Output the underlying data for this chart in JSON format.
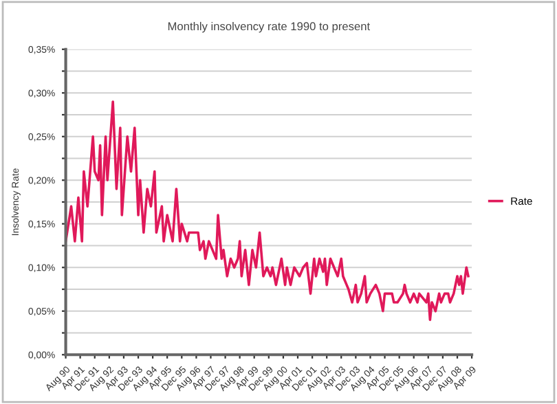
{
  "chart_data": {
    "type": "line",
    "title": "Monthly insolvency rate 1990 to present",
    "ylabel": "Insolvency Rate",
    "x": [
      "1990-08",
      "1990-11",
      "1991-01",
      "1991-03",
      "1991-05",
      "1991-06",
      "1991-08",
      "1991-11",
      "1991-12",
      "1992-02",
      "1992-03",
      "1992-04",
      "1992-06",
      "1992-07",
      "1992-10",
      "1992-12",
      "1993-02",
      "1993-03",
      "1993-06",
      "1993-08",
      "1993-10",
      "1993-12",
      "1994-01",
      "1994-03",
      "1994-05",
      "1994-07",
      "1994-09",
      "1994-10",
      "1995-01",
      "1995-02",
      "1995-04",
      "1995-07",
      "1995-09",
      "1995-11",
      "1995-12",
      "1996-03",
      "1996-04",
      "1996-09",
      "1996-10",
      "1996-12",
      "1997-01",
      "1997-03",
      "1997-05",
      "1997-07",
      "1997-08",
      "1997-10",
      "1997-11",
      "1998-01",
      "1998-03",
      "1998-05",
      "1998-07",
      "1998-08",
      "1998-09",
      "1998-11",
      "1999-01",
      "1999-03",
      "1999-05",
      "1999-07",
      "1999-09",
      "1999-11",
      "2000-01",
      "2000-02",
      "2000-04",
      "2000-07",
      "2000-09",
      "2000-10",
      "2000-12",
      "2001-02",
      "2001-05",
      "2001-07",
      "2001-09",
      "2001-11",
      "2002-01",
      "2002-02",
      "2002-04",
      "2002-06",
      "2002-07",
      "2002-08",
      "2002-10",
      "2002-12",
      "2003-02",
      "2003-04",
      "2003-05",
      "2003-07",
      "2003-08",
      "2003-10",
      "2003-12",
      "2004-01",
      "2004-03",
      "2004-05",
      "2004-06",
      "2004-08",
      "2004-11",
      "2005-01",
      "2005-03",
      "2005-04",
      "2005-08",
      "2005-09",
      "2005-11",
      "2006-02",
      "2006-03",
      "2006-04",
      "2006-06",
      "2006-08",
      "2006-10",
      "2006-11",
      "2007-03",
      "2007-04",
      "2007-05",
      "2007-06",
      "2007-08",
      "2007-10",
      "2007-11",
      "2008-01",
      "2008-03",
      "2008-04",
      "2008-06",
      "2008-08",
      "2008-09",
      "2008-10",
      "2008-11",
      "2009-01",
      "2009-02"
    ],
    "series": [
      {
        "name": "Rate",
        "color": "#e0195a",
        "values": [
          0.13,
          0.17,
          0.13,
          0.18,
          0.13,
          0.21,
          0.17,
          0.25,
          0.21,
          0.2,
          0.24,
          0.16,
          0.25,
          0.2,
          0.29,
          0.19,
          0.26,
          0.16,
          0.25,
          0.21,
          0.26,
          0.16,
          0.2,
          0.14,
          0.19,
          0.17,
          0.21,
          0.14,
          0.17,
          0.13,
          0.16,
          0.13,
          0.19,
          0.13,
          0.15,
          0.13,
          0.14,
          0.14,
          0.12,
          0.13,
          0.11,
          0.13,
          0.12,
          0.11,
          0.16,
          0.11,
          0.12,
          0.09,
          0.11,
          0.1,
          0.11,
          0.13,
          0.09,
          0.12,
          0.08,
          0.12,
          0.1,
          0.14,
          0.09,
          0.1,
          0.09,
          0.1,
          0.08,
          0.11,
          0.08,
          0.1,
          0.08,
          0.1,
          0.09,
          0.1,
          0.105,
          0.07,
          0.11,
          0.09,
          0.11,
          0.095,
          0.11,
          0.08,
          0.11,
          0.1,
          0.09,
          0.11,
          0.09,
          0.08,
          0.075,
          0.06,
          0.08,
          0.06,
          0.07,
          0.09,
          0.06,
          0.07,
          0.08,
          0.07,
          0.05,
          0.07,
          0.07,
          0.06,
          0.06,
          0.07,
          0.08,
          0.07,
          0.06,
          0.07,
          0.06,
          0.07,
          0.06,
          0.07,
          0.04,
          0.06,
          0.05,
          0.07,
          0.06,
          0.07,
          0.07,
          0.06,
          0.07,
          0.09,
          0.08,
          0.09,
          0.07,
          0.1,
          0.09
        ]
      }
    ],
    "xlim": [
      "1990-08",
      "2009-04"
    ],
    "xticks": [
      {
        "value": "1990-08",
        "label": "Aug 90"
      },
      {
        "value": "1991-04",
        "label": "Apr 91"
      },
      {
        "value": "1991-12",
        "label": "Dec 91"
      },
      {
        "value": "1992-08",
        "label": "Aug 92"
      },
      {
        "value": "1993-04",
        "label": "Apr 93"
      },
      {
        "value": "1993-12",
        "label": "Dec 93"
      },
      {
        "value": "1994-08",
        "label": "Aug 94"
      },
      {
        "value": "1995-04",
        "label": "Apr 95"
      },
      {
        "value": "1995-12",
        "label": "Dec 95"
      },
      {
        "value": "1996-08",
        "label": "Aug 96"
      },
      {
        "value": "1997-04",
        "label": "Apr 97"
      },
      {
        "value": "1997-12",
        "label": "Dec 97"
      },
      {
        "value": "1998-08",
        "label": "Aug 98"
      },
      {
        "value": "1999-04",
        "label": "Apr 99"
      },
      {
        "value": "1999-12",
        "label": "Dec 99"
      },
      {
        "value": "2000-08",
        "label": "Aug 00"
      },
      {
        "value": "2001-04",
        "label": "Apr 01"
      },
      {
        "value": "2001-12",
        "label": "Dec 01"
      },
      {
        "value": "2002-08",
        "label": "Aug 02"
      },
      {
        "value": "2003-04",
        "label": "Apr 03"
      },
      {
        "value": "2003-12",
        "label": "Dec 03"
      },
      {
        "value": "2004-08",
        "label": "Aug 04"
      },
      {
        "value": "2005-04",
        "label": "Apr 05"
      },
      {
        "value": "2005-12",
        "label": "Dec 05"
      },
      {
        "value": "2006-08",
        "label": "Aug 06"
      },
      {
        "value": "2007-04",
        "label": "Apr 07"
      },
      {
        "value": "2007-12",
        "label": "Dec 07"
      },
      {
        "value": "2008-08",
        "label": "Aug 08"
      },
      {
        "value": "2009-04",
        "label": "Apr 09"
      }
    ],
    "ylim": [
      0,
      0.35
    ],
    "yticks": [
      {
        "value": 0,
        "label": "0,00%"
      },
      {
        "value": 0.025,
        "label": null
      },
      {
        "value": 0.05,
        "label": "0,05%"
      },
      {
        "value": 0.075,
        "label": null
      },
      {
        "value": 0.1,
        "label": "0,10%"
      },
      {
        "value": 0.125,
        "label": null
      },
      {
        "value": 0.15,
        "label": "0,15%"
      },
      {
        "value": 0.175,
        "label": null
      },
      {
        "value": 0.2,
        "label": "0,20%"
      },
      {
        "value": 0.225,
        "label": null
      },
      {
        "value": 0.25,
        "label": "0,25%"
      },
      {
        "value": 0.275,
        "label": null
      },
      {
        "value": 0.3,
        "label": "0,30%"
      },
      {
        "value": 0.325,
        "label": null
      },
      {
        "value": 0.35,
        "label": "0,35%"
      }
    ],
    "grid": "y",
    "legend": "right",
    "marker": "none",
    "line_style": "solid"
  }
}
